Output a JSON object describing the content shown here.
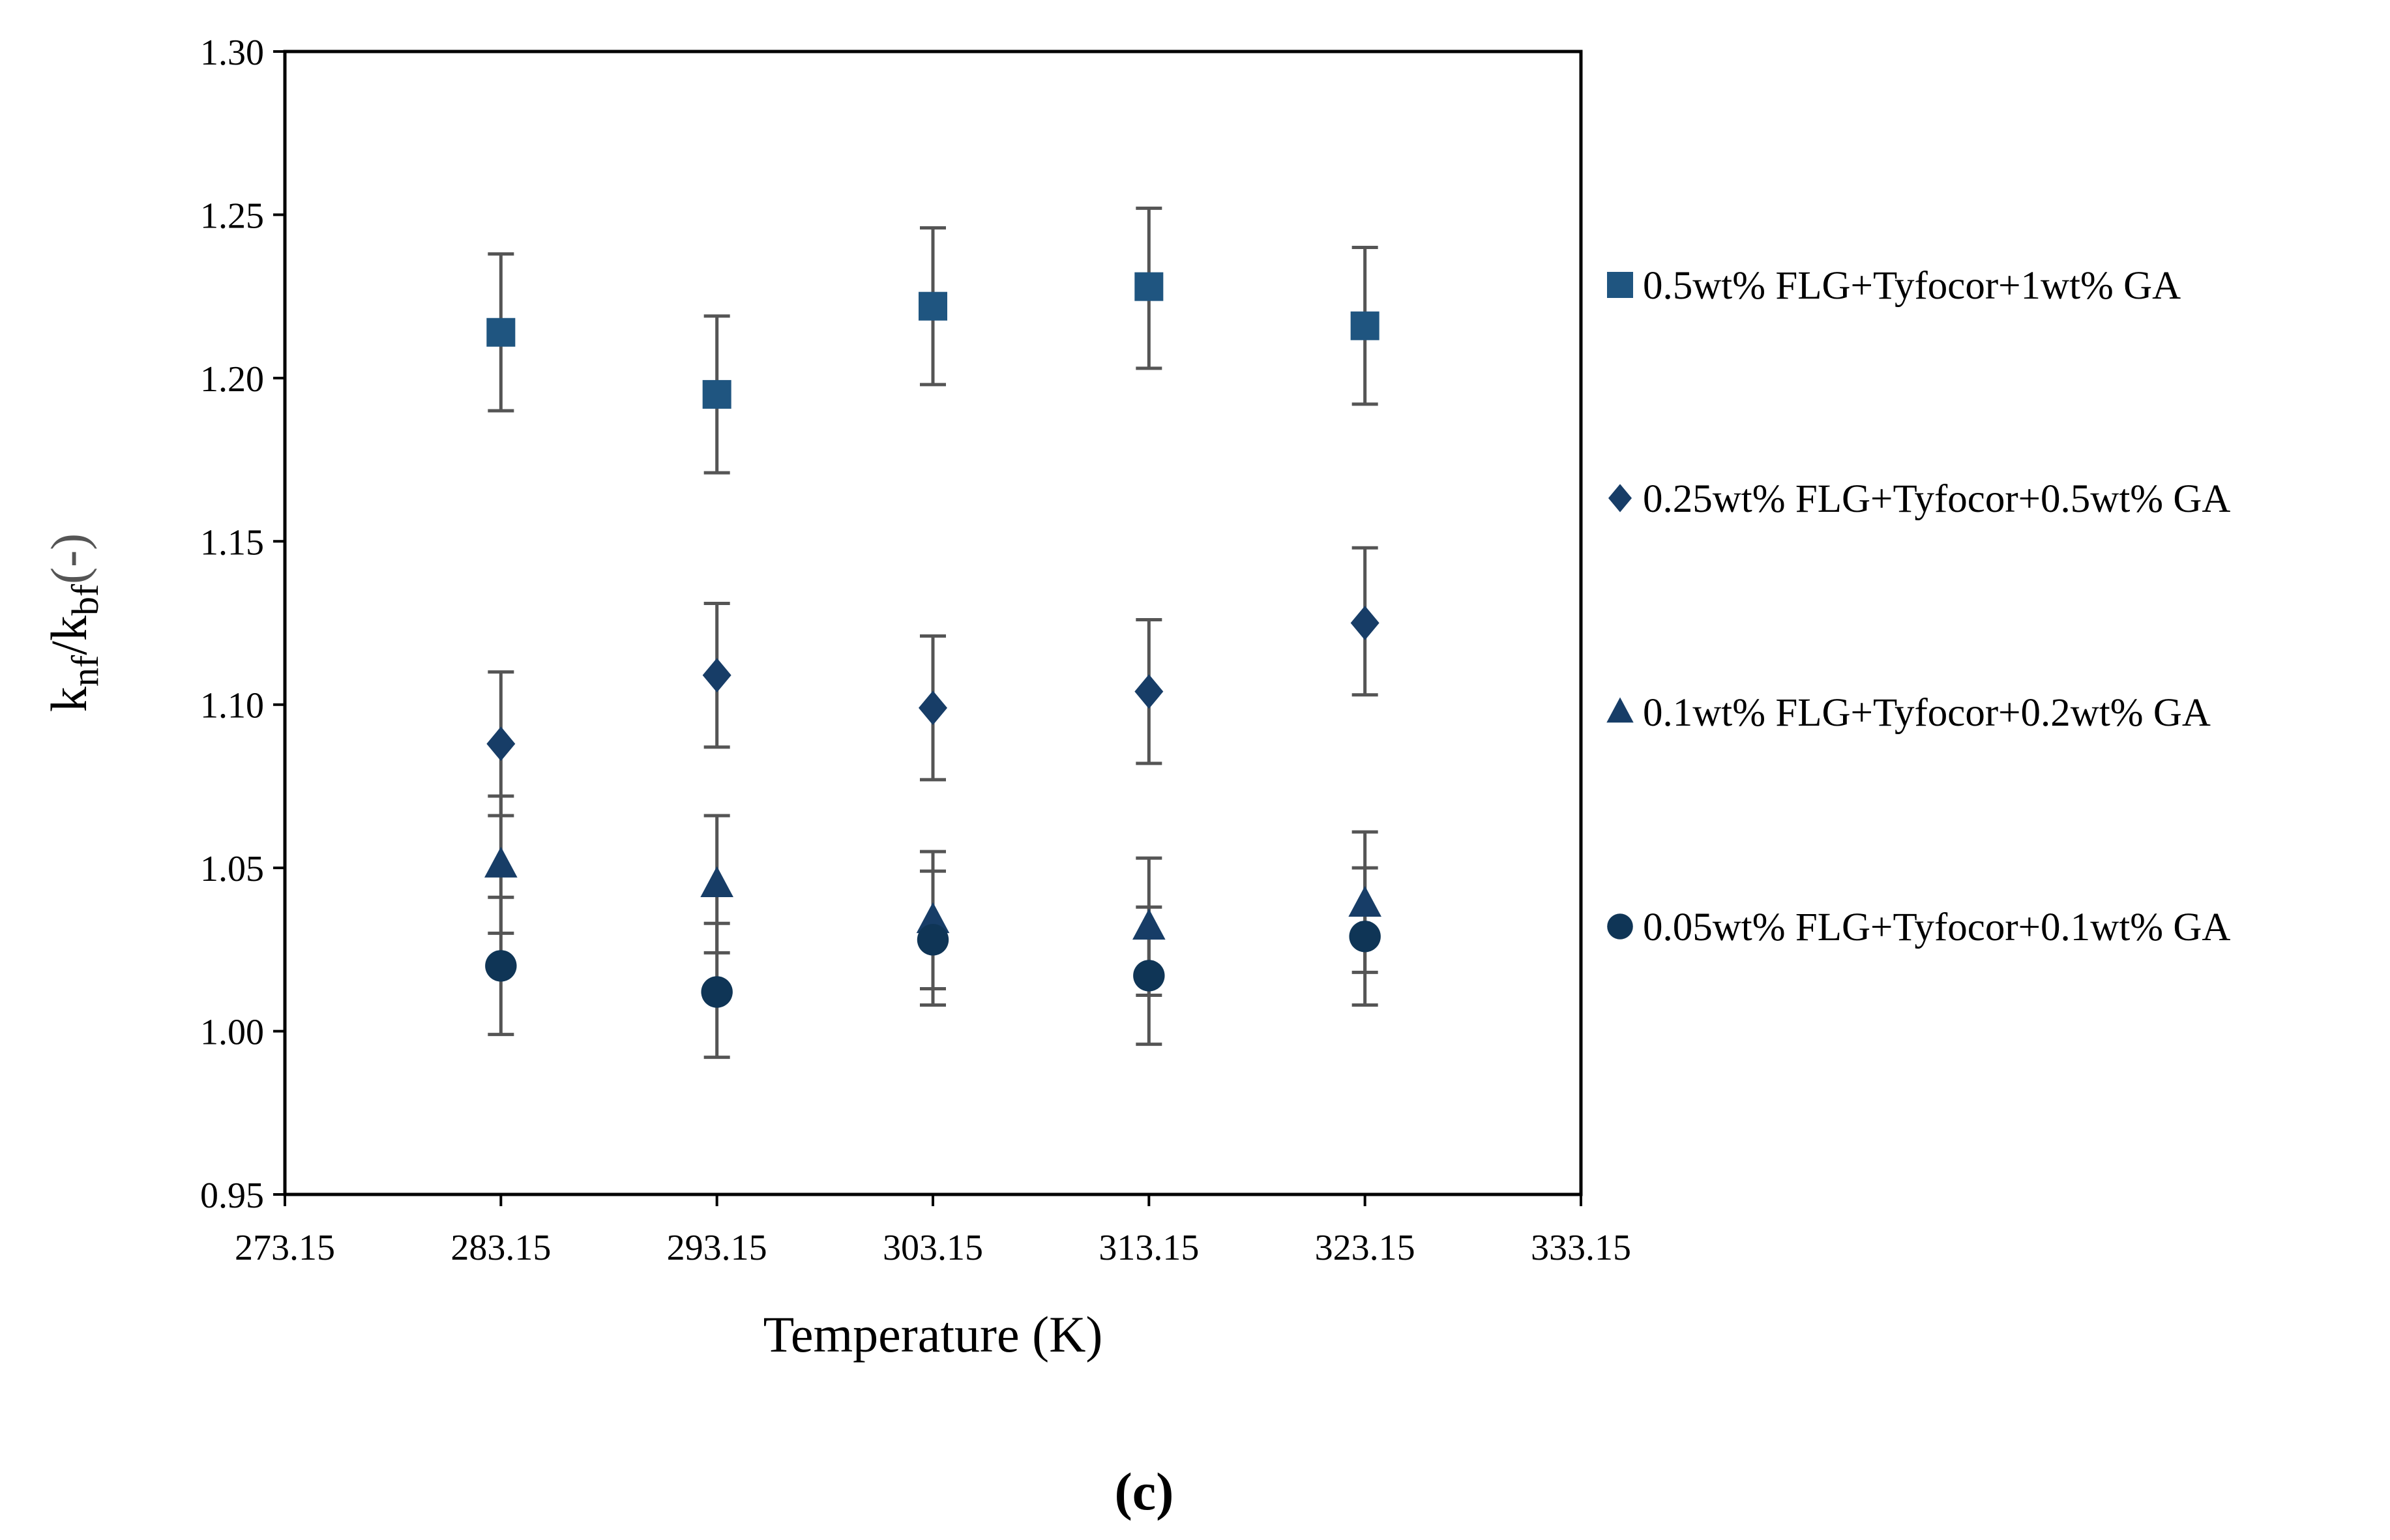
{
  "chart_data": {
    "type": "scatter",
    "title": "",
    "xlabel": "Temperature (K)",
    "ylabel": {
      "main": "k",
      "sub1": "nf",
      "slash": "/k",
      "sub2": "bf",
      "unit": "(-)"
    },
    "xlim": [
      273.15,
      333.15
    ],
    "ylim": [
      0.95,
      1.3
    ],
    "x_ticks": [
      "273.15",
      "283.15",
      "293.15",
      "303.15",
      "313.15",
      "323.15",
      "333.15"
    ],
    "y_ticks": [
      "0.95",
      "1.00",
      "1.05",
      "1.10",
      "1.15",
      "1.20",
      "1.25",
      "1.30"
    ],
    "x": [
      283.15,
      293.15,
      303.15,
      313.15,
      323.15
    ],
    "grid": false,
    "legend_position": "right",
    "series": [
      {
        "name": "0.5wt% FLG+Tyfocor+1wt% GA",
        "marker": "square",
        "color": "#1f5580",
        "values": [
          1.214,
          1.195,
          1.222,
          1.228,
          1.216
        ],
        "error_low": [
          1.19,
          1.171,
          1.198,
          1.203,
          1.192
        ],
        "error_high": [
          1.238,
          1.219,
          1.246,
          1.252,
          1.24
        ]
      },
      {
        "name": "0.25wt% FLG+Tyfocor+0.5wt% GA",
        "marker": "diamond",
        "color": "#173d67",
        "values": [
          1.088,
          1.109,
          1.099,
          1.104,
          1.125
        ],
        "error_low": [
          1.066,
          1.087,
          1.077,
          1.082,
          1.103
        ],
        "error_high": [
          1.11,
          1.131,
          1.121,
          1.126,
          1.148
        ]
      },
      {
        "name": "0.1wt% FLG+Tyfocor+0.2wt% GA",
        "marker": "triangle",
        "color": "#173d67",
        "values": [
          1.051,
          1.045,
          1.034,
          1.032,
          1.039
        ],
        "error_low": [
          1.03,
          1.024,
          1.013,
          1.011,
          1.018
        ],
        "error_high": [
          1.072,
          1.066,
          1.055,
          1.053,
          1.061
        ]
      },
      {
        "name": "0.05wt% FLG+Tyfocor+0.1wt% GA",
        "marker": "circle",
        "color": "#0f3556",
        "values": [
          1.02,
          1.012,
          1.028,
          1.017,
          1.029
        ],
        "error_low": [
          0.999,
          0.992,
          1.008,
          0.996,
          1.008
        ],
        "error_high": [
          1.041,
          1.033,
          1.049,
          1.038,
          1.05
        ]
      }
    ],
    "error_bar_color": "#555555"
  },
  "panel_label": "(c)"
}
